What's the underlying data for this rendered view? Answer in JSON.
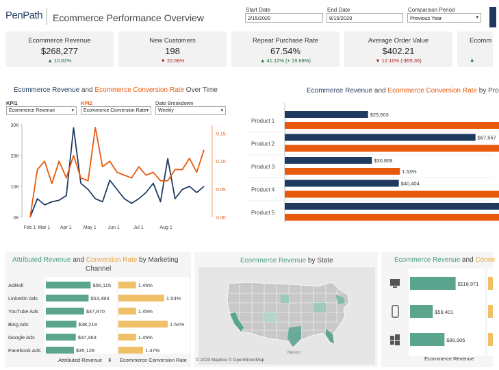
{
  "header": {
    "logo": "PenPath",
    "title": "Ecommerce Performance Overview",
    "start_label": "Start Date",
    "start_value": "2/15/2020",
    "end_label": "End Date",
    "end_value": "8/15/2020",
    "comparison_label": "Comparison Period",
    "comparison_value": "Previous Year"
  },
  "kpis": [
    {
      "title": "Ecommerce Revenue",
      "value": "$268,277",
      "change": "▲ 10.62%",
      "dir": "up"
    },
    {
      "title": "New Customers",
      "value": "198",
      "change": "▼ 22.66%",
      "dir": "down"
    },
    {
      "title": "Repeat Purchase Rate",
      "value": "67.54%",
      "change": "▲ 41.12% (+ 19.68%)",
      "dir": "up"
    },
    {
      "title": "Average Order Value",
      "value": "$402.21",
      "change": "▼ 12.10% (-$55.36)",
      "dir": "down"
    },
    {
      "title": "Ecomm",
      "value": "",
      "change": "▲",
      "dir": "up"
    }
  ],
  "trend": {
    "title_a": "Ecommerce Revenue",
    "title_and": " and ",
    "title_b": "Ecommerce Conversion Rate",
    "title_c": " Over Time",
    "kpi1_label": "KPI1",
    "kpi1_value": "Ecommerce Revenue",
    "kpi2_label": "KPI2",
    "kpi2_value": "Ecommerce Conversion Rate",
    "breakdown_label": "Date Breakdown",
    "breakdown_value": "Weekly"
  },
  "product": {
    "title_a": "Ecommerce Revenue",
    "title_and": " and ",
    "title_b": "Ecommerce Conversion Rate",
    "title_c": " by Pro"
  },
  "marketing": {
    "title_a": "Attributed Revenue",
    "title_and": " and ",
    "title_b": "Conversion Rate",
    "title_c": " by Marketing",
    "title_d": "Channel",
    "footer_a": "Attributed Revenue",
    "footer_b": "Ecommerce Conversion Rate",
    "sort_icon": "sort-icon"
  },
  "map": {
    "title_a": "Ecommerce Revenue",
    "title_b": " by State",
    "credit": "© 2020 Mapbox  © OpenStreetMap",
    "mexico": "Mexico"
  },
  "device": {
    "title_a": "Ecommerce Revenue",
    "title_and": " and ",
    "title_b": "Conve",
    "footer": "Ecommerce Revenue"
  },
  "colors": {
    "navy": "#1f3a5f",
    "orange": "#e8590c",
    "teal": "#5ba58f",
    "gold": "#f0c068"
  },
  "chart_data": [
    {
      "type": "line",
      "title": "Ecommerce Revenue and Ecommerce Conversion Rate Over Time",
      "x_tick_labels": [
        "Feb 1",
        "Mar 1",
        "Apr 1",
        "May 1",
        "Jun 1",
        "Jul 1",
        "Aug 1"
      ],
      "y_left_ticks": [
        "0K",
        "10K",
        "20K",
        "30K"
      ],
      "y_right_ticks": [
        "0.00",
        "0.05",
        "0.10",
        "0.15"
      ],
      "ylim_left": [
        0,
        30000
      ],
      "ylim_right": [
        0,
        0.165
      ],
      "series": [
        {
          "name": "Ecommerce Revenue",
          "axis": "left",
          "color": "#1f3a5f",
          "values": [
            0,
            6000,
            4000,
            5000,
            5500,
            7000,
            29000,
            11000,
            9000,
            6000,
            5000,
            12000,
            9000,
            6000,
            4500,
            6000,
            8000,
            11000,
            5000,
            19000,
            6000,
            9000,
            10000,
            8000,
            10000
          ]
        },
        {
          "name": "Ecommerce Conversion Rate",
          "axis": "right",
          "color": "#e8590c",
          "values": [
            0.0,
            0.085,
            0.1,
            0.06,
            0.1,
            0.07,
            0.11,
            0.07,
            0.065,
            0.16,
            0.09,
            0.1,
            0.08,
            0.075,
            0.07,
            0.09,
            0.075,
            0.08,
            0.065,
            0.065,
            0.085,
            0.085,
            0.105,
            0.08,
            0.12
          ]
        }
      ]
    },
    {
      "type": "bar",
      "title": "Ecommerce Revenue and Ecommerce Conversion Rate by Product",
      "categories": [
        "Product 1",
        "Product 2",
        "Product 3",
        "Product 4",
        "Product 5"
      ],
      "series": [
        {
          "name": "Ecommerce Revenue",
          "color": "#1f3a5f",
          "values": [
            29503,
            67557,
            30869,
            40404,
            80000
          ],
          "labels": [
            "$29,503",
            "$67,557",
            "$30,869",
            "$40,404",
            ""
          ]
        },
        {
          "name": "Ecommerce Conversion Rate",
          "color": "#e8590c",
          "values": [
            3.0,
            3.0,
            1.53,
            3.0,
            3.0
          ],
          "labels": [
            "",
            "",
            "1.53%",
            "",
            ""
          ]
        }
      ]
    },
    {
      "type": "bar",
      "title": "Attributed Revenue and Conversion Rate by Marketing Channel",
      "categories": [
        "AdRoll",
        "LinkedIn Ads",
        "YouTube Ads",
        "Bing Ads",
        "Google Ads",
        "Facebook Ads"
      ],
      "series": [
        {
          "name": "Attributed Revenue",
          "color": "#5ba58f",
          "values": [
            56115,
            53483,
            47870,
            38219,
            37463,
            35128
          ],
          "labels": [
            "$56,115",
            "$53,483",
            "$47,870",
            "$38,219",
            "$37,463",
            "$35,128"
          ]
        },
        {
          "name": "Ecommerce Conversion Rate",
          "color": "#f0c068",
          "values": [
            1.45,
            1.53,
            1.45,
            1.54,
            1.45,
            1.47
          ],
          "labels": [
            "1.45%",
            "1.53%",
            "1.45%",
            "1.54%",
            "1.45%",
            "1.47%"
          ]
        }
      ]
    },
    {
      "type": "bar",
      "title": "Ecommerce Revenue and Conversion Rate by Device",
      "categories": [
        "desktop",
        "mobile",
        "tablet"
      ],
      "series": [
        {
          "name": "Ecommerce Revenue",
          "color": "#5ba58f",
          "values": [
            118971,
            59401,
            89905
          ],
          "labels": [
            "$118,971",
            "$59,401",
            "$89,905"
          ]
        }
      ]
    }
  ]
}
